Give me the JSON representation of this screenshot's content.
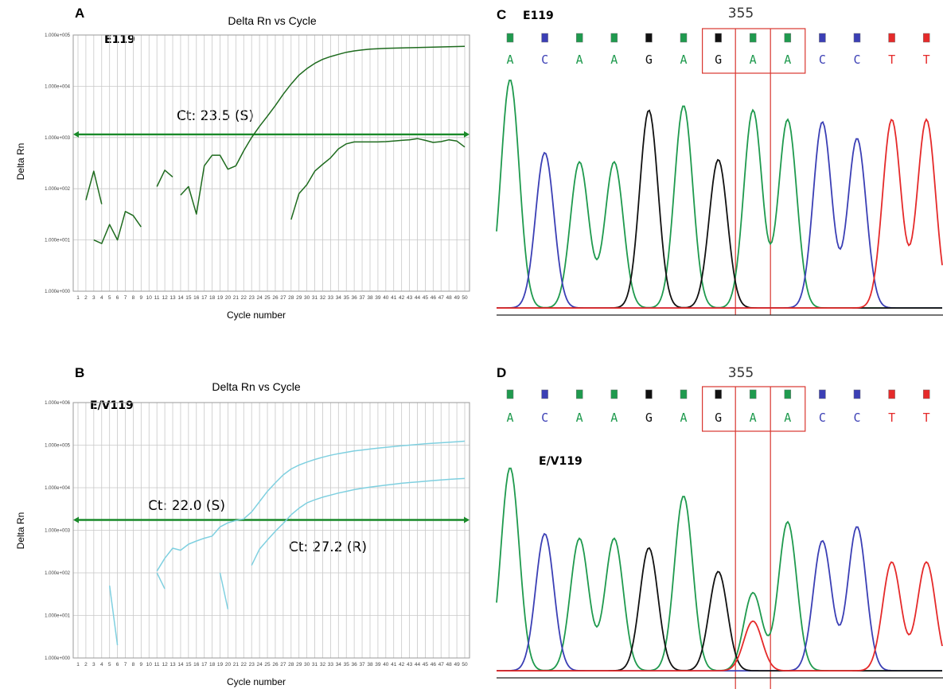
{
  "colors": {
    "susceptible_curve": "#1e6b1e",
    "resistant_curve": "#7fd0e0",
    "threshold": "#1a8a2a",
    "gridline": "#c8c8c8",
    "box": "#d9362f",
    "base_A": "#1f9a4e",
    "base_C": "#3b3fb5",
    "base_G": "#111111",
    "base_T": "#e52a2a"
  },
  "chart_data": [
    {
      "type": "line",
      "panel": "A",
      "title": "Delta Rn vs Cycle",
      "sample_label": "E119",
      "xlabel": "Cycle number",
      "ylabel": "Delta Rn",
      "x_ticks": [
        "1",
        "2",
        "3",
        "4",
        "5",
        "6",
        "7",
        "8",
        "9",
        "10",
        "11",
        "12",
        "13",
        "14",
        "15",
        "16",
        "17",
        "18",
        "19",
        "20",
        "21",
        "22",
        "23",
        "24",
        "25",
        "26",
        "27",
        "28",
        "29",
        "30",
        "31",
        "32",
        "33",
        "34",
        "35",
        "36",
        "37",
        "38",
        "39",
        "40",
        "41",
        "42",
        "43",
        "44",
        "45",
        "46",
        "47",
        "48",
        "49",
        "50"
      ],
      "y_ticks": [
        "1.000e+000",
        "1.000e+001",
        "1.000e+002",
        "1.000e+003",
        "1.000e+004",
        "1.000e+005"
      ],
      "y_scale": "log",
      "ylim": [
        1,
        100000
      ],
      "xlim": [
        1,
        50
      ],
      "threshold": 1150,
      "annotations": [
        {
          "text": "Ct: 23.5 (S)"
        }
      ],
      "series": [
        {
          "segments": [
            [
              [
                2,
                60
              ],
              [
                3,
                220
              ],
              [
                4,
                50
              ]
            ],
            [
              [
                3,
                10
              ],
              [
                4,
                8.5
              ],
              [
                5,
                20
              ],
              [
                6,
                10
              ],
              [
                7,
                36
              ],
              [
                8,
                30
              ],
              [
                9,
                18
              ]
            ],
            [
              [
                11,
                110
              ],
              [
                12,
                230
              ],
              [
                13,
                170
              ]
            ],
            [
              [
                14,
                75
              ],
              [
                15,
                110
              ],
              [
                16,
                32
              ],
              [
                17,
                280
              ],
              [
                18,
                450
              ],
              [
                19,
                450
              ],
              [
                20,
                240
              ],
              [
                21,
                280
              ],
              [
                22,
                550
              ],
              [
                23,
                1000
              ],
              [
                24,
                1650
              ],
              [
                25,
                2600
              ],
              [
                26,
                4200
              ],
              [
                27,
                7000
              ],
              [
                28,
                11000
              ],
              [
                29,
                16500
              ],
              [
                30,
                22000
              ],
              [
                31,
                28000
              ],
              [
                32,
                33500
              ],
              [
                33,
                38000
              ],
              [
                34,
                42000
              ],
              [
                35,
                46000
              ],
              [
                36,
                49000
              ],
              [
                37,
                51000
              ],
              [
                38,
                53000
              ],
              [
                39,
                54000
              ],
              [
                40,
                55000
              ],
              [
                41,
                55500
              ],
              [
                42,
                56000
              ],
              [
                43,
                56500
              ],
              [
                44,
                57000
              ],
              [
                45,
                57500
              ],
              [
                46,
                58000
              ],
              [
                47,
                58500
              ],
              [
                48,
                59000
              ],
              [
                49,
                59500
              ],
              [
                50,
                60000
              ]
            ]
          ]
        },
        {
          "segments": [
            [
              [
                28,
                25
              ],
              [
                29,
                80
              ],
              [
                30,
                120
              ],
              [
                31,
                220
              ],
              [
                32,
                300
              ],
              [
                33,
                400
              ],
              [
                34,
                600
              ],
              [
                35,
                750
              ],
              [
                36,
                820
              ],
              [
                37,
                820
              ],
              [
                38,
                820
              ],
              [
                39,
                820
              ],
              [
                40,
                830
              ],
              [
                41,
                850
              ],
              [
                42,
                880
              ],
              [
                43,
                900
              ],
              [
                44,
                950
              ],
              [
                45,
                880
              ],
              [
                46,
                800
              ],
              [
                47,
                830
              ],
              [
                48,
                900
              ],
              [
                49,
                850
              ],
              [
                50,
                650
              ]
            ]
          ]
        }
      ]
    },
    {
      "type": "line",
      "panel": "B",
      "title": "Delta Rn vs Cycle",
      "sample_label": "E/V119",
      "xlabel": "Cycle number",
      "ylabel": "Delta Rn",
      "x_ticks": [
        "1",
        "2",
        "3",
        "4",
        "5",
        "6",
        "7",
        "8",
        "9",
        "10",
        "11",
        "12",
        "13",
        "14",
        "15",
        "16",
        "17",
        "18",
        "19",
        "20",
        "21",
        "22",
        "23",
        "24",
        "25",
        "26",
        "27",
        "28",
        "29",
        "30",
        "31",
        "32",
        "33",
        "34",
        "35",
        "36",
        "37",
        "38",
        "39",
        "40",
        "41",
        "42",
        "43",
        "44",
        "45",
        "46",
        "47",
        "48",
        "49",
        "50"
      ],
      "y_ticks": [
        "1.000e+000",
        "1.000e+001",
        "1.000e+002",
        "1.000e+003",
        "1.000e+004",
        "1.000e+005",
        "1.000e+006"
      ],
      "y_scale": "log",
      "ylim": [
        1,
        1000000
      ],
      "xlim": [
        1,
        50
      ],
      "threshold": 1750,
      "annotations": [
        {
          "text": "Ct: 22.0 (S)"
        },
        {
          "text": "Ct: 27.2 (R)"
        }
      ],
      "series": [
        {
          "segments": [
            [
              [
                5,
                50
              ],
              [
                6,
                2
              ]
            ],
            [
              [
                11,
                100
              ],
              [
                12,
                42
              ]
            ],
            [
              [
                19,
                100
              ],
              [
                20,
                14
              ]
            ],
            [
              [
                11,
                110
              ],
              [
                12,
                220
              ],
              [
                13,
                380
              ],
              [
                14,
                340
              ],
              [
                15,
                470
              ],
              [
                16,
                560
              ],
              [
                17,
                650
              ],
              [
                18,
                730
              ],
              [
                19,
                1200
              ],
              [
                20,
                1500
              ],
              [
                21,
                1700
              ],
              [
                22,
                1850
              ],
              [
                23,
                2700
              ],
              [
                24,
                4700
              ],
              [
                25,
                8200
              ],
              [
                26,
                13000
              ],
              [
                27,
                20000
              ],
              [
                28,
                27500
              ],
              [
                29,
                34000
              ],
              [
                30,
                40000
              ],
              [
                31,
                46000
              ],
              [
                32,
                52000
              ],
              [
                33,
                58000
              ],
              [
                34,
                63000
              ],
              [
                35,
                68000
              ],
              [
                36,
                73000
              ],
              [
                37,
                77000
              ],
              [
                38,
                81000
              ],
              [
                39,
                85000
              ],
              [
                40,
                89000
              ],
              [
                41,
                93000
              ],
              [
                42,
                97000
              ],
              [
                43,
                100000
              ],
              [
                44,
                104000
              ],
              [
                45,
                108000
              ],
              [
                46,
                111000
              ],
              [
                47,
                114000
              ],
              [
                48,
                117000
              ],
              [
                49,
                120000
              ],
              [
                50,
                124000
              ]
            ]
          ]
        },
        {
          "segments": [
            [
              [
                23,
                150
              ],
              [
                24,
                360
              ],
              [
                25,
                590
              ],
              [
                26,
                950
              ],
              [
                27,
                1450
              ],
              [
                28,
                2300
              ],
              [
                29,
                3300
              ],
              [
                30,
                4400
              ],
              [
                31,
                5200
              ],
              [
                32,
                6000
              ],
              [
                33,
                6700
              ],
              [
                34,
                7500
              ],
              [
                35,
                8200
              ],
              [
                36,
                9000
              ],
              [
                37,
                9700
              ],
              [
                38,
                10300
              ],
              [
                39,
                10900
              ],
              [
                40,
                11500
              ],
              [
                41,
                12100
              ],
              [
                42,
                12700
              ],
              [
                43,
                13200
              ],
              [
                44,
                13700
              ],
              [
                45,
                14200
              ],
              [
                46,
                14700
              ],
              [
                47,
                15200
              ],
              [
                48,
                15700
              ],
              [
                49,
                16100
              ],
              [
                50,
                16500
              ]
            ]
          ]
        }
      ]
    }
  ],
  "panels": {
    "A": {
      "letter": "A"
    },
    "B": {
      "letter": "B"
    },
    "C": {
      "letter": "C",
      "sample_label": "E119",
      "position_label": "355",
      "bases": [
        "A",
        "C",
        "A",
        "A",
        "G",
        "A",
        "G",
        "A",
        "A",
        "C",
        "C",
        "T",
        "T"
      ],
      "peaks": [
        {
          "base": "A",
          "height": 0.97
        },
        {
          "base": "C",
          "height": 0.66
        },
        {
          "base": "A",
          "height": 0.62
        },
        {
          "base": "A",
          "height": 0.62
        },
        {
          "base": "G",
          "height": 0.84
        },
        {
          "base": "A",
          "height": 0.86
        },
        {
          "base": "G",
          "height": 0.63
        },
        {
          "base": "A",
          "height": 0.84
        },
        {
          "base": "A",
          "height": 0.8
        },
        {
          "base": "C",
          "height": 0.79
        },
        {
          "base": "C",
          "height": 0.72
        },
        {
          "base": "T",
          "height": 0.8
        },
        {
          "base": "T",
          "height": 0.8
        }
      ]
    },
    "D": {
      "letter": "D",
      "sample_label": "E/V119",
      "position_label": "355",
      "bases": [
        "A",
        "C",
        "A",
        "A",
        "G",
        "A",
        "G",
        "A",
        "A",
        "C",
        "C",
        "T",
        "T"
      ],
      "peaks": [
        {
          "base": "A",
          "height": 0.86
        },
        {
          "base": "C",
          "height": 0.58
        },
        {
          "base": "A",
          "height": 0.56
        },
        {
          "base": "A",
          "height": 0.56
        },
        {
          "base": "G",
          "height": 0.52
        },
        {
          "base": "A",
          "height": 0.74
        },
        {
          "base": "G",
          "height": 0.42
        },
        {
          "base": "A",
          "height": 0.33
        },
        {
          "base": "A",
          "height": 0.63
        },
        {
          "base": "C",
          "height": 0.55
        },
        {
          "base": "C",
          "height": 0.61
        },
        {
          "base": "T",
          "height": 0.46
        },
        {
          "base": "T",
          "height": 0.46
        }
      ],
      "secondary_peaks": [
        {
          "index": 7,
          "base": "T",
          "height": 0.21
        }
      ]
    }
  }
}
